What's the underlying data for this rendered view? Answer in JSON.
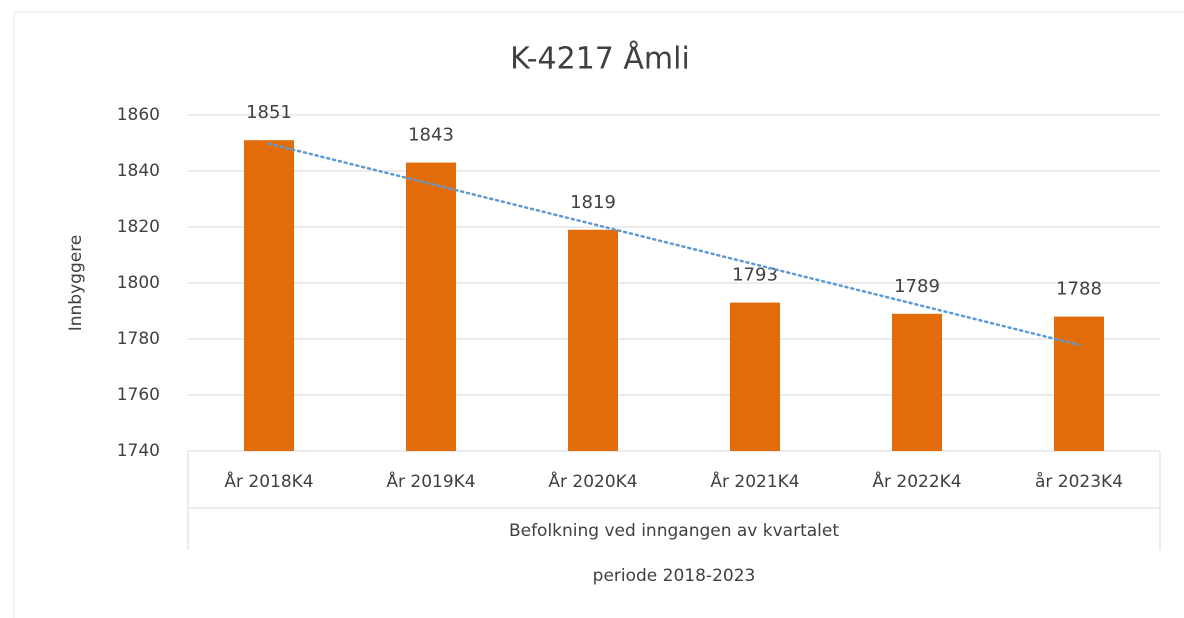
{
  "chart_data": {
    "type": "bar",
    "title": "K-4217 Åmli",
    "categories": [
      "År 2018K4",
      "År 2019K4",
      "År 2020K4",
      "År 2021K4",
      "År 2022K4",
      "år 2023K4"
    ],
    "values": [
      1851,
      1843,
      1819,
      1793,
      1789,
      1788
    ],
    "color": "#e36c0a",
    "ylim": [
      1740,
      1860
    ],
    "yticks": [
      1740,
      1760,
      1780,
      1800,
      1820,
      1840,
      1860
    ],
    "grid": true,
    "y_label": "Innbyggere",
    "x_group_label": "Befolkning ved inngangen av kvartalet",
    "x_label": "periode 2018-2023",
    "trendline": {
      "type": "linear",
      "color": "#5b9bd5"
    }
  }
}
